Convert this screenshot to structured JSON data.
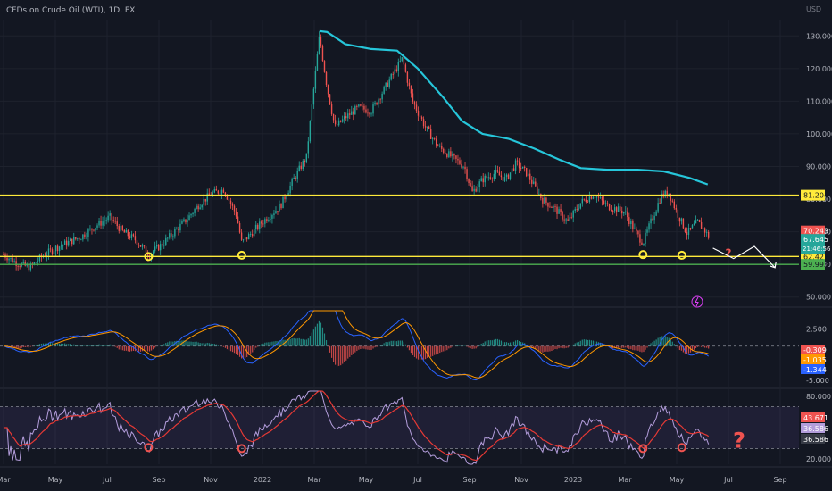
{
  "header": {
    "title": "CFDs on Crude Oil (WTI), 1D, FX"
  },
  "currency": "USD",
  "colors": {
    "background": "#131722",
    "grid": "#1e222d",
    "up": "#26a69a",
    "down": "#ef5350",
    "ma": "#26c6da",
    "level": "#ffeb3b",
    "support": "#4caf50",
    "rsi": "#b39ddb",
    "rsi_ma": "#e53935",
    "macd": "#2962ff",
    "signal": "#ff9800",
    "mark": "#ffeb3b",
    "rsi_mark": "#ef5350"
  },
  "chart_data": [
    {
      "name": "price",
      "type": "candlestick",
      "ylim": [
        48,
        135
      ],
      "yticks": [
        "130.000",
        "120.000",
        "110.000",
        "100.000",
        "90.000",
        "80.000",
        "70.000",
        "60.000",
        "50.000"
      ],
      "ytick_values": [
        130,
        120,
        110,
        100,
        90,
        80,
        70,
        60,
        50
      ],
      "x_labels": [
        "Mar",
        "May",
        "Jul",
        "Sep",
        "Nov",
        "2022",
        "Mar",
        "May",
        "Jul",
        "Sep",
        "Nov",
        "2023",
        "Mar",
        "May",
        "Jul",
        "Sep"
      ],
      "x_label_months": [
        0,
        2,
        4,
        6,
        8,
        10,
        12,
        14,
        16,
        18,
        20,
        22,
        24,
        26,
        28,
        30
      ],
      "price_path": [
        [
          0,
          63
        ],
        [
          0.5,
          60.5
        ],
        [
          1,
          59
        ],
        [
          1.5,
          62.5
        ],
        [
          2,
          65
        ],
        [
          3,
          68.5
        ],
        [
          3.6,
          72
        ],
        [
          4.1,
          74.5
        ],
        [
          4.6,
          70
        ],
        [
          5.1,
          67.5
        ],
        [
          5.6,
          63
        ],
        [
          6.1,
          66
        ],
        [
          6.6,
          70
        ],
        [
          7.1,
          74
        ],
        [
          7.5,
          78
        ],
        [
          8,
          81.5
        ],
        [
          8.5,
          83
        ],
        [
          9,
          75
        ],
        [
          9.2,
          66.5
        ],
        [
          9.5,
          69
        ],
        [
          10,
          73
        ],
        [
          10.7,
          78
        ],
        [
          11.2,
          86
        ],
        [
          11.7,
          93
        ],
        [
          12.2,
          130
        ],
        [
          12.5,
          114
        ],
        [
          12.8,
          102
        ],
        [
          13.2,
          105
        ],
        [
          13.7,
          108
        ],
        [
          14.2,
          107
        ],
        [
          14.8,
          115
        ],
        [
          15.4,
          123
        ],
        [
          15.8,
          110
        ],
        [
          16.3,
          102
        ],
        [
          16.8,
          96
        ],
        [
          17.3,
          93
        ],
        [
          17.8,
          90
        ],
        [
          18.1,
          82
        ],
        [
          18.5,
          86
        ],
        [
          19,
          88
        ],
        [
          19.4,
          86
        ],
        [
          19.8,
          91
        ],
        [
          20.2,
          88
        ],
        [
          20.8,
          80
        ],
        [
          21.3,
          77
        ],
        [
          21.8,
          73
        ],
        [
          22.3,
          79
        ],
        [
          22.8,
          81.5
        ],
        [
          23.3,
          78
        ],
        [
          24,
          76
        ],
        [
          24.4,
          70
        ],
        [
          24.7,
          66.5
        ],
        [
          25,
          73
        ],
        [
          25.4,
          81
        ],
        [
          25.7,
          82
        ],
        [
          26,
          76
        ],
        [
          26.4,
          69.5
        ],
        [
          26.8,
          73
        ],
        [
          27.1,
          70.2
        ],
        [
          27.3,
          67.6
        ]
      ],
      "ma_path": [
        [
          12.2,
          131.5
        ],
        [
          12.5,
          131.2
        ],
        [
          13.2,
          127.5
        ],
        [
          14.2,
          126
        ],
        [
          15.2,
          125.5
        ],
        [
          16,
          120
        ],
        [
          17,
          111
        ],
        [
          17.7,
          104
        ],
        [
          18.5,
          100
        ],
        [
          19.5,
          98.5
        ],
        [
          20.5,
          95.5
        ],
        [
          21.5,
          92
        ],
        [
          22.3,
          89.5
        ],
        [
          23.3,
          89
        ],
        [
          24.5,
          89
        ],
        [
          25.5,
          88.5
        ],
        [
          26.5,
          86.5
        ],
        [
          27.2,
          84.5
        ]
      ],
      "levels": [
        {
          "value": 81.204,
          "label": "81.204",
          "color": "#ffeb3b"
        },
        {
          "value": 62.427,
          "label": "62.427",
          "color": "#ffeb3b"
        },
        {
          "value": 59.993,
          "label": "59.993",
          "color": "#4caf50"
        }
      ],
      "tags": [
        {
          "value": 70.243,
          "label": "70.243",
          "color": "#ef5350"
        },
        {
          "value": 67.645,
          "label": "67.645",
          "sublabel": "21:46:56",
          "color": "#26a69a"
        }
      ],
      "markers": [
        {
          "month": 5.6,
          "value": 62.4
        },
        {
          "month": 9.2,
          "value": 62.8
        },
        {
          "month": 24.7,
          "value": 63.0
        },
        {
          "month": 26.2,
          "value": 62.8
        }
      ],
      "question_mark": {
        "text": "?",
        "month": 28.0,
        "value": 62.4
      },
      "projection": [
        [
          27.4,
          65
        ],
        [
          28.2,
          61.8
        ],
        [
          29.0,
          65.5
        ],
        [
          29.8,
          59
        ]
      ]
    },
    {
      "name": "macd",
      "type": "line+histogram",
      "ylim": [
        -5.8,
        5.2
      ],
      "yticks": [
        "2.500",
        "-5.000"
      ],
      "ytick_values": [
        2.5,
        -5.0
      ],
      "tags": [
        {
          "value": -0.309,
          "label": "-0.309",
          "color": "#ef5350"
        },
        {
          "value": -1.035,
          "label": "-1.035",
          "color": "#ff9800"
        },
        {
          "value": -1.344,
          "label": "-1.344",
          "color": "#2962ff"
        }
      ]
    },
    {
      "name": "rsi",
      "type": "line",
      "ylim": [
        15,
        85
      ],
      "yticks": [
        "80.000",
        "20.000"
      ],
      "ytick_values": [
        80,
        20
      ],
      "band": [
        30,
        70
      ],
      "tags": [
        {
          "value": 43.671,
          "label": "43.671",
          "color": "#ef5350"
        },
        {
          "value": 36.586,
          "label": "36.586",
          "color": "#b39ddb"
        },
        {
          "value": 36.586,
          "label": "36.586",
          "color": "#363a45"
        }
      ],
      "markers": [
        {
          "month": 5.6,
          "value": 31
        },
        {
          "month": 9.2,
          "value": 30
        },
        {
          "month": 24.7,
          "value": 30
        },
        {
          "month": 26.2,
          "value": 31
        }
      ],
      "question_mark": {
        "text": "?",
        "month": 28.0,
        "value": 36
      }
    }
  ],
  "flash_icon_name": "lightning-icon"
}
